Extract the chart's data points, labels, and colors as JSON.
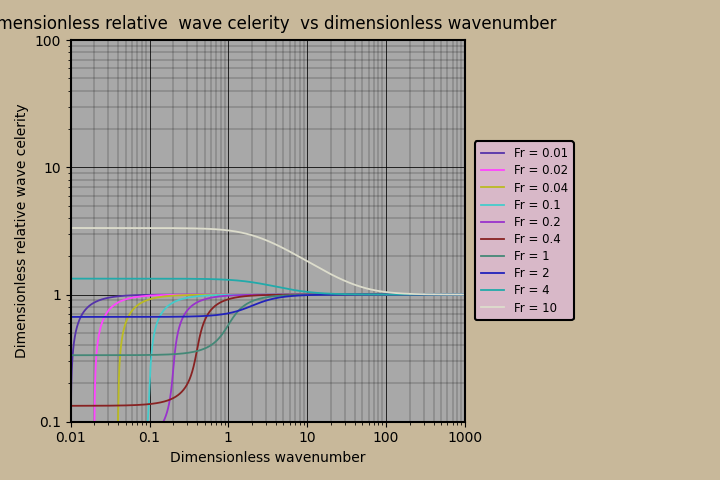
{
  "title": "Dimensionless relative  wave celerity  vs dimensionless wavenumber",
  "xlabel": "Dimensionless wavenumber",
  "ylabel": "Dimensionless relative wave celerity",
  "xlim": [
    0.01,
    1000
  ],
  "ylim": [
    0.1,
    100
  ],
  "froude_numbers": [
    0.01,
    0.02,
    0.04,
    0.1,
    0.2,
    0.4,
    1,
    2,
    4,
    10
  ],
  "line_colors": [
    "#5533aa",
    "#ff44ff",
    "#bbbb22",
    "#44cccc",
    "#9933cc",
    "#882222",
    "#448877",
    "#2222bb",
    "#22aaaa",
    "#ddddcc"
  ],
  "legend_labels": [
    "Fr = 0.01",
    "Fr = 0.02",
    "Fr = 0.04",
    "Fr = 0.1",
    "Fr = 0.2",
    "Fr = 0.4",
    "Fr = 1",
    "Fr = 2",
    "Fr = 4",
    "Fr = 10"
  ],
  "background_color": "#c8b89a",
  "plot_bg_color": "#a8a8a8",
  "legend_bg_color": "#d8b8c8",
  "title_fontsize": 12,
  "label_fontsize": 10
}
